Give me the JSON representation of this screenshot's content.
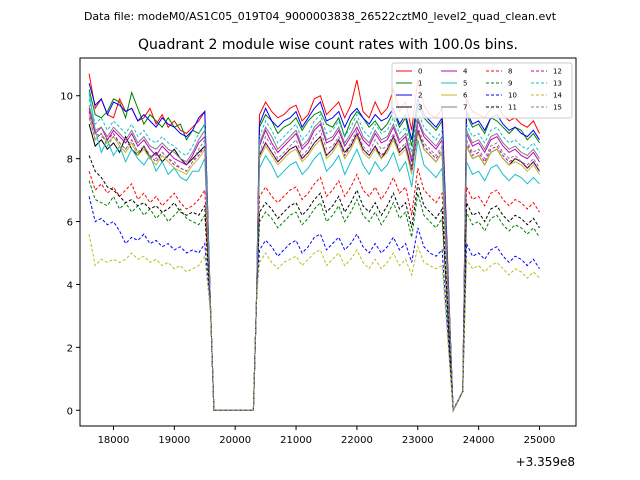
{
  "header": {
    "data_file": "Data file: modeM0/AS1C05_019T04_9000003838_26522cztM0_level2_quad_clean.evt"
  },
  "chart_data": {
    "type": "line",
    "title": "Quadrant 2 module wise count rates with 100.0s bins.",
    "xlabel": "",
    "ylabel": "",
    "x_offset_label": "+3.359e8",
    "xlim": [
      17450,
      25600
    ],
    "ylim": [
      -0.5,
      11.2
    ],
    "x_ticks": [
      18000,
      19000,
      20000,
      21000,
      22000,
      23000,
      24000,
      25000
    ],
    "y_ticks": [
      0,
      2,
      4,
      6,
      8,
      10
    ],
    "grid": false,
    "legend": "top-right",
    "gaps": [
      [
        19650,
        20350
      ],
      [
        23580,
        23740
      ]
    ],
    "segments": [
      {
        "x_start": 17600,
        "x_end": 19500,
        "step": 100
      },
      {
        "x_start": 20400,
        "x_end": 23400,
        "step": 100
      },
      {
        "x_start": 23800,
        "x_end": 25300,
        "step": 100
      }
    ],
    "series": [
      {
        "name": "0",
        "color": "#ff0000",
        "dash": "solid",
        "values": [
          10.7,
          9.6,
          9.9,
          9.4,
          9.3,
          9.9,
          9.5,
          9.6,
          9.2,
          9.3,
          9.6,
          9.1,
          9.4,
          9.0,
          9.2,
          8.9,
          8.8,
          9.0,
          9.2,
          9.5,
          9.4,
          9.8,
          9.5,
          9.3,
          9.4,
          9.6,
          9.7,
          9.2,
          9.4,
          9.9,
          10.0,
          9.4,
          9.6,
          9.8,
          9.3,
          9.7,
          10.5,
          9.5,
          9.3,
          9.8,
          9.4,
          9.6,
          10.2,
          9.5,
          9.8,
          8.9,
          10.5,
          9.7,
          9.4,
          9.3,
          9.6,
          9.9,
          9.5,
          9.4,
          9.3,
          9.6,
          9.7,
          9.4,
          9.2,
          9.3,
          9.1,
          9.0,
          9.2,
          8.8
        ]
      },
      {
        "name": "1",
        "color": "#008000",
        "dash": "solid",
        "values": [
          10.2,
          9.4,
          9.3,
          9.5,
          9.9,
          9.8,
          9.3,
          10.1,
          9.6,
          9.1,
          9.4,
          9.2,
          9.0,
          9.3,
          9.0,
          9.1,
          8.6,
          8.9,
          8.8,
          9.1,
          9.0,
          9.4,
          9.2,
          8.8,
          9.0,
          9.1,
          9.3,
          8.9,
          9.2,
          9.4,
          9.5,
          9.1,
          9.0,
          9.3,
          8.7,
          9.2,
          9.5,
          9.3,
          9.0,
          9.2,
          8.9,
          9.1,
          9.5,
          9.0,
          9.3,
          8.4,
          9.7,
          9.3,
          9.1,
          8.9,
          9.2,
          9.4,
          9.0,
          9.1,
          8.8,
          9.3,
          9.2,
          9.0,
          8.8,
          9.0,
          8.9,
          8.6,
          8.8,
          8.5
        ]
      },
      {
        "name": "2",
        "color": "#0000ff",
        "dash": "solid",
        "values": [
          10.4,
          9.7,
          9.9,
          9.4,
          9.8,
          9.7,
          9.5,
          9.6,
          9.2,
          9.4,
          9.2,
          9.0,
          9.3,
          9.1,
          9.0,
          8.8,
          8.7,
          8.9,
          9.3,
          9.5,
          9.1,
          9.6,
          9.2,
          9.0,
          9.2,
          9.3,
          9.5,
          9.0,
          9.3,
          9.6,
          9.8,
          9.2,
          9.3,
          9.5,
          9.0,
          9.4,
          9.6,
          9.3,
          9.1,
          9.4,
          9.2,
          9.3,
          9.6,
          9.1,
          9.4,
          8.6,
          9.9,
          9.4,
          9.2,
          9.0,
          9.3,
          9.5,
          9.1,
          9.2,
          8.9,
          9.3,
          9.4,
          9.1,
          8.9,
          9.0,
          8.8,
          8.7,
          8.9,
          8.6
        ]
      },
      {
        "name": "3",
        "color": "#000000",
        "dash": "solid",
        "values": [
          9.1,
          8.4,
          8.6,
          8.3,
          8.5,
          8.2,
          8.7,
          8.3,
          8.1,
          8.4,
          8.0,
          8.2,
          7.9,
          8.1,
          8.3,
          8.0,
          7.8,
          8.0,
          8.2,
          8.4,
          8.1,
          8.5,
          8.2,
          7.9,
          8.1,
          8.3,
          8.4,
          8.0,
          8.2,
          8.5,
          8.7,
          8.1,
          8.3,
          8.6,
          8.2,
          8.4,
          8.8,
          8.3,
          8.1,
          8.4,
          8.0,
          8.3,
          8.7,
          8.2,
          8.4,
          7.7,
          8.9,
          8.3,
          8.1,
          7.9,
          8.2,
          8.4,
          8.0,
          8.1,
          7.8,
          8.2,
          8.3,
          8.0,
          7.8,
          8.0,
          7.9,
          7.7,
          7.9,
          7.6
        ]
      },
      {
        "name": "4",
        "color": "#bf00bf",
        "dash": "solid",
        "values": [
          9.6,
          8.8,
          9.0,
          8.6,
          8.9,
          8.7,
          8.5,
          8.8,
          8.4,
          8.6,
          8.3,
          8.1,
          8.4,
          8.2,
          8.0,
          7.9,
          7.8,
          8.1,
          8.5,
          8.7,
          8.4,
          8.9,
          8.5,
          8.2,
          8.4,
          8.6,
          8.8,
          8.3,
          8.5,
          8.9,
          9.1,
          8.5,
          8.6,
          8.9,
          8.4,
          8.7,
          9.0,
          8.6,
          8.4,
          8.8,
          8.5,
          8.6,
          9.0,
          8.5,
          8.7,
          7.9,
          9.2,
          8.7,
          8.5,
          8.3,
          8.6,
          8.8,
          8.4,
          8.5,
          8.2,
          8.6,
          8.7,
          8.4,
          8.2,
          8.3,
          8.1,
          8.0,
          8.2,
          7.9
        ]
      },
      {
        "name": "5",
        "color": "#17becf",
        "dash": "solid",
        "values": [
          10.1,
          8.9,
          8.2,
          8.6,
          8.1,
          8.4,
          7.9,
          8.3,
          8.0,
          7.8,
          8.1,
          7.6,
          7.9,
          7.5,
          7.7,
          7.4,
          7.3,
          7.6,
          7.6,
          8.0,
          7.7,
          8.1,
          7.8,
          7.4,
          7.6,
          7.8,
          7.9,
          7.5,
          7.7,
          8.0,
          8.2,
          7.6,
          7.8,
          8.1,
          7.5,
          7.9,
          8.3,
          7.8,
          7.5,
          7.9,
          7.6,
          7.8,
          8.2,
          7.6,
          7.9,
          7.1,
          8.6,
          7.8,
          7.6,
          7.4,
          7.7,
          7.9,
          7.5,
          7.6,
          7.3,
          7.7,
          7.8,
          7.5,
          7.3,
          7.5,
          7.4,
          7.2,
          7.4,
          7.2
        ]
      },
      {
        "name": "6",
        "color": "#bcbd22",
        "dash": "solid",
        "values": [
          9.4,
          8.6,
          8.8,
          8.5,
          8.7,
          8.4,
          8.2,
          8.5,
          8.1,
          8.3,
          8.0,
          7.8,
          8.1,
          7.9,
          7.7,
          7.6,
          7.5,
          7.8,
          8.0,
          8.3,
          8.0,
          8.4,
          8.1,
          7.8,
          8.0,
          8.2,
          8.3,
          7.9,
          8.1,
          8.4,
          8.6,
          8.0,
          8.2,
          8.5,
          8.0,
          8.3,
          8.7,
          8.2,
          8.0,
          8.3,
          8.0,
          8.2,
          8.6,
          8.1,
          8.3,
          7.5,
          8.8,
          8.3,
          8.1,
          7.9,
          8.2,
          8.4,
          8.0,
          8.1,
          7.8,
          8.2,
          8.3,
          8.0,
          7.8,
          7.9,
          7.8,
          7.6,
          7.8,
          7.5
        ]
      },
      {
        "name": "7",
        "color": "#7f7f7f",
        "dash": "solid",
        "values": [
          9.7,
          8.9,
          9.0,
          8.7,
          9.0,
          8.8,
          8.6,
          8.9,
          8.5,
          8.7,
          8.4,
          8.3,
          8.5,
          8.3,
          8.2,
          8.0,
          7.9,
          8.2,
          8.6,
          8.9,
          8.5,
          9.0,
          8.7,
          8.3,
          8.5,
          8.7,
          8.9,
          8.4,
          8.6,
          9.0,
          9.2,
          8.6,
          8.7,
          9.0,
          8.5,
          8.8,
          9.2,
          8.7,
          8.5,
          8.9,
          8.6,
          8.7,
          9.1,
          8.6,
          8.8,
          8.0,
          9.3,
          8.8,
          8.6,
          8.4,
          8.7,
          8.9,
          8.5,
          8.6,
          8.3,
          8.7,
          8.8,
          8.5,
          8.3,
          8.4,
          8.2,
          8.1,
          8.3,
          8.0
        ]
      },
      {
        "name": "8",
        "color": "#ff0000",
        "dash": "dashed",
        "values": [
          7.6,
          7.0,
          7.2,
          6.9,
          7.1,
          6.8,
          7.0,
          7.2,
          6.7,
          6.9,
          6.6,
          6.8,
          6.5,
          6.7,
          6.9,
          6.6,
          6.4,
          6.5,
          6.7,
          7.0,
          6.8,
          7.1,
          6.8,
          6.6,
          6.8,
          7.0,
          7.1,
          6.7,
          6.9,
          7.2,
          7.4,
          6.8,
          7.0,
          7.3,
          6.8,
          7.1,
          7.5,
          7.0,
          6.8,
          7.1,
          6.7,
          7.0,
          7.4,
          6.9,
          7.1,
          6.2,
          7.7,
          7.0,
          6.8,
          6.6,
          6.9,
          7.1,
          6.7,
          6.8,
          6.5,
          6.9,
          7.0,
          6.7,
          6.5,
          6.7,
          6.6,
          6.4,
          6.6,
          6.3
        ]
      },
      {
        "name": "9",
        "color": "#008000",
        "dash": "dashed",
        "values": [
          7.3,
          6.7,
          6.6,
          6.5,
          6.8,
          6.4,
          6.6,
          6.3,
          6.5,
          6.2,
          6.4,
          6.1,
          6.3,
          6.0,
          6.2,
          6.4,
          6.1,
          6.0,
          5.9,
          6.2,
          6.0,
          6.3,
          6.1,
          5.8,
          6.0,
          6.2,
          6.3,
          5.9,
          6.1,
          6.4,
          6.6,
          6.0,
          6.2,
          6.5,
          6.0,
          6.3,
          6.7,
          6.2,
          6.0,
          6.3,
          5.9,
          6.2,
          6.6,
          6.1,
          6.3,
          5.5,
          6.9,
          6.2,
          6.0,
          5.8,
          6.1,
          6.3,
          5.9,
          6.0,
          5.7,
          6.1,
          6.2,
          5.9,
          5.7,
          5.9,
          5.8,
          5.6,
          5.8,
          5.5
        ]
      },
      {
        "name": "10",
        "color": "#0000ff",
        "dash": "dashed",
        "values": [
          6.8,
          6.0,
          6.1,
          5.9,
          6.0,
          5.7,
          5.3,
          5.5,
          5.4,
          5.6,
          5.3,
          5.4,
          5.2,
          5.3,
          5.1,
          5.2,
          5.0,
          5.1,
          5.0,
          5.3,
          5.1,
          5.4,
          5.2,
          4.9,
          5.1,
          5.3,
          5.4,
          5.0,
          5.2,
          5.5,
          5.6,
          5.1,
          5.3,
          5.5,
          5.1,
          5.3,
          5.6,
          5.2,
          5.0,
          5.3,
          5.0,
          5.2,
          5.5,
          5.1,
          5.3,
          4.7,
          5.8,
          5.2,
          5.0,
          4.9,
          5.1,
          5.3,
          4.9,
          5.0,
          4.8,
          5.1,
          5.2,
          4.9,
          4.7,
          4.9,
          4.8,
          4.6,
          4.8,
          4.5
        ]
      },
      {
        "name": "11",
        "color": "#000000",
        "dash": "dashed",
        "values": [
          8.1,
          7.6,
          7.4,
          7.1,
          7.0,
          6.8,
          6.6,
          6.7,
          6.5,
          6.6,
          6.4,
          6.5,
          6.3,
          6.4,
          6.6,
          6.3,
          6.2,
          6.3,
          6.2,
          6.5,
          6.3,
          6.6,
          6.4,
          6.1,
          6.3,
          6.5,
          6.6,
          6.2,
          6.4,
          6.7,
          6.9,
          6.3,
          6.5,
          6.8,
          6.3,
          6.6,
          7.0,
          6.5,
          6.3,
          6.6,
          6.2,
          6.5,
          6.9,
          6.4,
          6.6,
          5.8,
          7.2,
          6.5,
          6.3,
          6.1,
          6.4,
          6.6,
          6.2,
          6.3,
          6.0,
          6.4,
          6.5,
          6.2,
          6.0,
          6.2,
          6.1,
          5.9,
          6.1,
          5.8
        ]
      },
      {
        "name": "12",
        "color": "#bf00bf",
        "dash": "dashed",
        "values": [
          9.5,
          8.8,
          8.7,
          8.6,
          8.8,
          8.5,
          8.3,
          8.6,
          8.2,
          8.4,
          8.1,
          7.9,
          8.2,
          8.0,
          7.8,
          7.7,
          7.6,
          7.9,
          8.1,
          8.4,
          8.1,
          8.5,
          8.2,
          7.9,
          8.1,
          8.3,
          8.4,
          8.0,
          8.2,
          8.5,
          8.7,
          8.1,
          8.3,
          8.6,
          8.1,
          8.4,
          8.8,
          8.3,
          8.1,
          8.4,
          8.1,
          8.3,
          8.7,
          8.2,
          8.4,
          7.6,
          8.9,
          8.4,
          8.2,
          8.0,
          8.3,
          8.5,
          8.1,
          8.2,
          7.9,
          8.3,
          8.4,
          8.1,
          7.9,
          8.0,
          7.9,
          7.7,
          7.9,
          7.6
        ]
      },
      {
        "name": "13",
        "color": "#17becf",
        "dash": "dashed",
        "values": [
          9.9,
          9.1,
          9.3,
          8.9,
          9.2,
          9.0,
          8.8,
          9.1,
          8.7,
          8.9,
          8.6,
          8.5,
          8.7,
          8.5,
          8.4,
          8.2,
          8.1,
          8.4,
          8.8,
          9.1,
          8.7,
          9.2,
          8.9,
          8.5,
          8.7,
          8.9,
          9.1,
          8.6,
          8.8,
          9.2,
          9.4,
          8.8,
          8.9,
          9.2,
          8.7,
          9.0,
          9.4,
          8.9,
          8.7,
          9.1,
          8.8,
          8.9,
          9.3,
          8.8,
          9.0,
          8.2,
          9.5,
          9.0,
          8.8,
          8.6,
          8.9,
          9.1,
          8.7,
          8.8,
          8.5,
          8.9,
          9.0,
          8.7,
          8.5,
          8.6,
          8.4,
          8.3,
          8.5,
          8.2
        ]
      },
      {
        "name": "14",
        "color": "#bcbd22",
        "dash": "dashed",
        "values": [
          5.6,
          4.6,
          4.8,
          4.7,
          4.8,
          4.7,
          4.8,
          5.0,
          4.8,
          4.9,
          4.7,
          4.8,
          4.6,
          4.7,
          4.5,
          4.6,
          4.4,
          4.5,
          4.6,
          4.9,
          4.7,
          5.0,
          4.7,
          4.5,
          4.7,
          4.8,
          4.9,
          4.6,
          4.8,
          5.0,
          5.1,
          4.6,
          4.8,
          5.0,
          4.6,
          4.8,
          5.1,
          4.7,
          4.5,
          4.8,
          4.5,
          4.7,
          5.0,
          4.6,
          4.8,
          4.3,
          5.2,
          4.7,
          4.6,
          4.5,
          4.6,
          4.8,
          4.5,
          4.6,
          4.4,
          4.6,
          4.7,
          4.5,
          4.3,
          4.5,
          4.4,
          4.2,
          4.4,
          4.2
        ]
      },
      {
        "name": "15",
        "color": "#7f7f7f",
        "dash": "dashed",
        "values": [
          9.3,
          8.6,
          8.8,
          8.4,
          8.7,
          8.5,
          8.3,
          8.6,
          8.2,
          8.4,
          8.1,
          8.0,
          8.2,
          8.0,
          7.9,
          7.7,
          7.6,
          7.9,
          8.3,
          8.6,
          8.2,
          8.7,
          8.4,
          8.0,
          8.2,
          8.4,
          8.6,
          8.1,
          8.3,
          8.7,
          8.9,
          8.3,
          8.4,
          8.7,
          8.2,
          8.5,
          8.9,
          8.4,
          8.2,
          8.6,
          8.3,
          8.4,
          8.8,
          8.3,
          8.5,
          7.7,
          9.0,
          8.5,
          8.3,
          8.1,
          8.4,
          8.6,
          8.2,
          8.3,
          8.0,
          8.4,
          8.5,
          8.2,
          8.0,
          8.1,
          7.9,
          7.8,
          8.0,
          7.7
        ]
      }
    ]
  }
}
